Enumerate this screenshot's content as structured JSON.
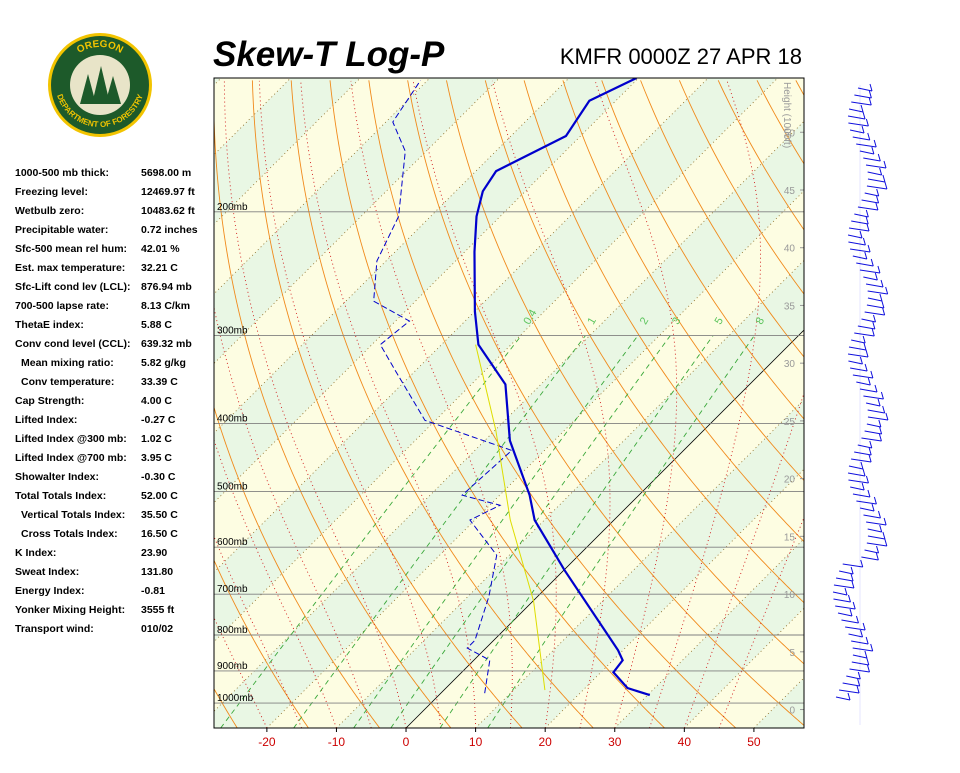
{
  "logo": {
    "top": "OREGON",
    "bottom": "DEPARTMENT OF FORESTRY"
  },
  "stats": [
    {
      "label": "1000-500 mb thick:",
      "value": "5698.00 m"
    },
    {
      "label": "Freezing level:",
      "value": "12469.97 ft"
    },
    {
      "label": "Wetbulb zero:",
      "value": "10483.62 ft"
    },
    {
      "label": "Precipitable water:",
      "value": "0.72 inches"
    },
    {
      "label": "Sfc-500 mean rel hum:",
      "value": "42.01 %"
    },
    {
      "label": "Est. max temperature:",
      "value": "32.21 C"
    },
    {
      "label": "Sfc-Lift cond lev (LCL):",
      "value": "876.94 mb"
    },
    {
      "label": "700-500 lapse rate:",
      "value": "8.13 C/km"
    },
    {
      "label": "ThetaE index:",
      "value": "5.88 C"
    },
    {
      "label": "Conv cond level (CCL):",
      "value": "639.32 mb"
    },
    {
      "label": "Mean mixing ratio:",
      "value": "5.82 g/kg"
    },
    {
      "label": "Conv temperature:",
      "value": "33.39 C"
    },
    {
      "label": "Cap Strength:",
      "value": "4.00 C"
    },
    {
      "label": "Lifted Index:",
      "value": "-0.27 C"
    },
    {
      "label": "Lifted Index @300 mb:",
      "value": "1.02 C"
    },
    {
      "label": "Lifted Index @700 mb:",
      "value": "3.95 C"
    },
    {
      "label": "Showalter Index:",
      "value": "-0.30 C"
    },
    {
      "label": "Total Totals Index:",
      "value": "52.00 C"
    },
    {
      "label": "Vertical Totals Index:",
      "value": "35.50 C"
    },
    {
      "label": "Cross Totals Index:",
      "value": "16.50 C"
    },
    {
      "label": "K Index:",
      "value": "23.90"
    },
    {
      "label": "Sweat Index:",
      "value": "131.80"
    },
    {
      "label": "Energy Index:",
      "value": "-0.81"
    },
    {
      "label": "Yonker Mixing Height:",
      "value": "3555 ft"
    },
    {
      "label": "Transport wind:",
      "value": "010/02"
    }
  ],
  "chart_data": {
    "type": "skewt",
    "title": "Skew-T Log-P",
    "subtitle": "KMFR 0000Z 27 APR 18",
    "y2_label": "Height (1000ft)",
    "xlim": [
      -27.6,
      57.2
    ],
    "xticks": [
      -20,
      -10,
      0,
      10,
      20,
      30,
      40,
      50
    ],
    "ylim": [
      1085,
      129
    ],
    "log_y": true,
    "yticks": [
      {
        "value": 1000,
        "label": "1000mb"
      },
      {
        "value": 900,
        "label": "900mb"
      },
      {
        "value": 800,
        "label": "800mb"
      },
      {
        "value": 700,
        "label": "700mb"
      },
      {
        "value": 600,
        "label": "600mb"
      },
      {
        "value": 500,
        "label": "500mb"
      },
      {
        "value": 400,
        "label": "400mb"
      },
      {
        "value": 300,
        "label": "300mb"
      },
      {
        "value": 200,
        "label": "200mb"
      }
    ],
    "y2lim": [
      -1.6,
      54.7
    ],
    "y2ticks": [
      0,
      5,
      10,
      15,
      20,
      25,
      30,
      35,
      40,
      45,
      50
    ],
    "mixing_ratios": [
      0.4,
      1,
      2,
      3,
      5,
      8
    ],
    "series": [
      {
        "color": "#0000cc",
        "style": "solid",
        "pressure": [
          974,
          952,
          904,
          869,
          841,
          647,
          549,
          506,
          423,
          352,
          309,
          277,
          228,
          203,
          187,
          175,
          156,
          139,
          129
        ],
        "values": [
          30.3,
          26.1,
          21.8,
          21.4,
          19.3,
          0.1,
          -11.4,
          -15.7,
          -26.4,
          -35.1,
          -44.7,
          -50,
          -58.6,
          -63.4,
          -66.1,
          -67.1,
          -62.1,
          -63.8,
          -60.3
        ]
      },
      {
        "color": "#0000cc",
        "style": "dashed",
        "pressure": [
          968,
          869,
          835,
          814,
          705,
          616,
          549,
          523,
          506,
          437,
          396,
          336,
          309,
          286,
          268,
          235,
          203,
          164,
          149,
          130
        ],
        "values": [
          6.3,
          2.3,
          -2.7,
          -2.7,
          -7.0,
          -11.8,
          -20.7,
          -18.5,
          -25.4,
          -24.7,
          -41.5,
          -53,
          -58.8,
          -58,
          -66,
          -71.3,
          -74.6,
          -83,
          -89,
          -91
        ]
      },
      {
        "color": "#dddd00",
        "style": "solid",
        "pressure": [
          958,
          716,
          549,
          409,
          309
        ],
        "values": [
          14.5,
          0.1,
          -14.9,
          -29.9,
          -45.1
        ]
      }
    ]
  }
}
